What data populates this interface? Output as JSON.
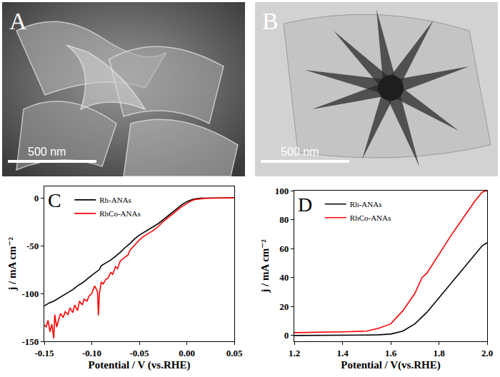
{
  "images": [
    {
      "panel_label": "A",
      "scale_bar": "500 nm"
    },
    {
      "panel_label": "B",
      "scale_bar": "500 nm"
    }
  ],
  "chart_data": [
    {
      "type": "line",
      "panel_label": "C",
      "x_label": "Potential / V (vs.RHE)",
      "y_label": "j / mA cm⁻²",
      "xlim": [
        -0.15,
        0.05
      ],
      "xticks": [
        -0.15,
        {
          "value": -0.1,
          "label": "-0.10"
        },
        -0.05,
        {
          "value": 0,
          "label": "0.00"
        },
        0.05
      ],
      "ylim": [
        -150,
        12
      ],
      "yticks": [
        -150,
        -100,
        -50,
        0
      ],
      "legend": "upper left",
      "series": [
        {
          "name": "Rh-ANAs",
          "color": "#000000",
          "x": [
            0.05,
            0.04,
            0.03,
            0.02,
            0.015,
            0.01,
            0.005,
            0.0,
            -0.005,
            -0.01,
            -0.015,
            -0.02,
            -0.025,
            -0.03,
            -0.035,
            -0.04,
            -0.045,
            -0.05,
            -0.055,
            -0.06,
            -0.065,
            -0.07,
            -0.075,
            -0.08,
            -0.085,
            -0.09,
            -0.092,
            -0.095,
            -0.1,
            -0.105,
            -0.11,
            -0.115,
            -0.12,
            -0.125,
            -0.13,
            -0.135,
            -0.14,
            -0.145,
            -0.15
          ],
          "values": [
            0,
            0,
            0,
            0,
            -0.3,
            -1,
            -2,
            -4,
            -7,
            -11,
            -15,
            -19,
            -23,
            -27,
            -30,
            -33,
            -36,
            -39,
            -43,
            -48,
            -52,
            -57,
            -61,
            -65,
            -68,
            -71,
            -75,
            -77,
            -81,
            -85,
            -89,
            -92,
            -96,
            -99,
            -102,
            -105,
            -108,
            -110,
            -113
          ]
        },
        {
          "name": "RhCo-ANAs",
          "color": "#ff0000",
          "x": [
            0.05,
            0.03,
            0.02,
            0.01,
            0.005,
            0.0,
            -0.005,
            -0.01,
            -0.015,
            -0.02,
            -0.025,
            -0.03,
            -0.035,
            -0.04,
            -0.045,
            -0.05,
            -0.055,
            -0.058,
            -0.06,
            -0.062,
            -0.065,
            -0.07,
            -0.073,
            -0.075,
            -0.078,
            -0.08,
            -0.083,
            -0.085,
            -0.088,
            -0.09,
            -0.092,
            -0.093,
            -0.094,
            -0.097,
            -0.1,
            -0.103,
            -0.105,
            -0.108,
            -0.11,
            -0.113,
            -0.115,
            -0.118,
            -0.12,
            -0.123,
            -0.125,
            -0.128,
            -0.13,
            -0.133,
            -0.135,
            -0.137,
            -0.139,
            -0.14,
            -0.142,
            -0.144,
            -0.146,
            -0.148,
            -0.15
          ],
          "values": [
            0,
            0,
            -0.5,
            -1.5,
            -3,
            -6,
            -9,
            -13,
            -17,
            -21,
            -25,
            -30,
            -34,
            -37,
            -40,
            -44,
            -50,
            -53,
            -55,
            -60,
            -62,
            -66,
            -74,
            -72,
            -80,
            -78,
            -84,
            -85,
            -90,
            -88,
            -100,
            -123,
            -98,
            -92,
            -100,
            -103,
            -108,
            -106,
            -112,
            -108,
            -118,
            -112,
            -120,
            -115,
            -122,
            -119,
            -125,
            -121,
            -128,
            -135,
            -122,
            -147,
            -132,
            -140,
            -128,
            -135,
            -133
          ]
        }
      ]
    },
    {
      "type": "line",
      "panel_label": "D",
      "x_label": "Potential / V(vs.RHE)",
      "y_label": "j / mA cm⁻²",
      "xlim": [
        1.2,
        2.0
      ],
      "xticks": [
        1.2,
        1.4,
        1.6,
        1.8,
        {
          "value": 2,
          "label": "2.0"
        }
      ],
      "ylim": [
        -4,
        100
      ],
      "yticks": [
        0,
        20,
        40,
        60,
        80,
        100
      ],
      "legend": "upper left",
      "series": [
        {
          "name": "Rh-ANAs",
          "color": "#000000",
          "x": [
            1.2,
            1.3,
            1.4,
            1.5,
            1.55,
            1.6,
            1.65,
            1.7,
            1.75,
            1.8,
            1.85,
            1.9,
            1.95,
            1.98,
            2.0
          ],
          "values": [
            0,
            0,
            0,
            0.3,
            0.5,
            1,
            3,
            8,
            16,
            26,
            36,
            46,
            56,
            62,
            64
          ]
        },
        {
          "name": "RhCo-ANAs",
          "color": "#ff0000",
          "x": [
            1.2,
            1.3,
            1.4,
            1.5,
            1.55,
            1.6,
            1.65,
            1.7,
            1.72,
            1.73,
            1.75,
            1.8,
            1.85,
            1.9,
            1.95,
            1.98,
            2.0
          ],
          "values": [
            2,
            2.2,
            2.5,
            3,
            5,
            8,
            17,
            29,
            36,
            40,
            43,
            56,
            69,
            81,
            93,
            99,
            100
          ]
        }
      ]
    }
  ]
}
